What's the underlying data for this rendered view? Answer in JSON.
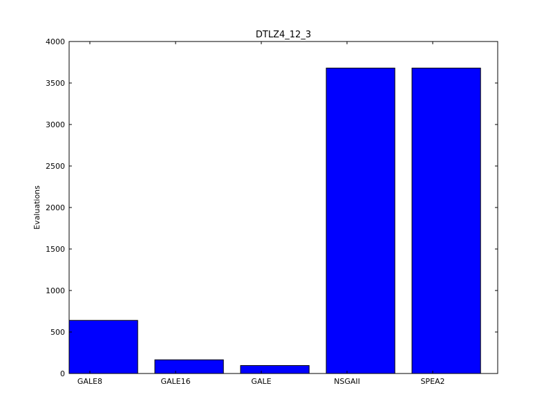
{
  "chart_data": {
    "type": "bar",
    "title": "DTLZ4_12_3",
    "xlabel": "",
    "ylabel": "Evaluations",
    "categories": [
      "GALE8",
      "GALE16",
      "GALE",
      "NSGAII",
      "SPEA2"
    ],
    "values": [
      640,
      165,
      96,
      3680,
      3680
    ],
    "ylim": [
      0,
      4000
    ],
    "yticks": [
      0,
      500,
      1000,
      1500,
      2000,
      2500,
      3000,
      3500,
      4000
    ],
    "bar_color": "#0000ff",
    "grid": false
  }
}
